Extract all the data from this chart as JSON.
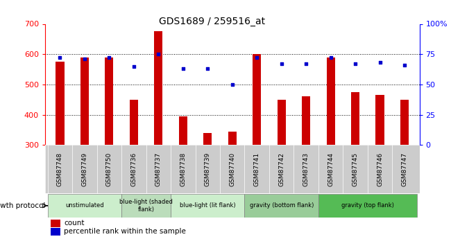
{
  "title": "GDS1689 / 259516_at",
  "samples": [
    "GSM87748",
    "GSM87749",
    "GSM87750",
    "GSM87736",
    "GSM87737",
    "GSM87738",
    "GSM87739",
    "GSM87740",
    "GSM87741",
    "GSM87742",
    "GSM87743",
    "GSM87744",
    "GSM87745",
    "GSM87746",
    "GSM87747"
  ],
  "counts": [
    575,
    590,
    590,
    450,
    675,
    395,
    340,
    345,
    600,
    450,
    460,
    590,
    475,
    465,
    450
  ],
  "percentiles": [
    72,
    71,
    72,
    65,
    75,
    63,
    63,
    50,
    72,
    67,
    67,
    72,
    67,
    68,
    66
  ],
  "bar_color": "#cc0000",
  "dot_color": "#0000cc",
  "y_min": 300,
  "y_max": 700,
  "y_ticks": [
    300,
    400,
    500,
    600,
    700
  ],
  "y2_tick_labels": [
    "0",
    "25",
    "50",
    "75",
    "100%"
  ],
  "y2_ticks": [
    0,
    25,
    50,
    75,
    100
  ],
  "groups": [
    {
      "label": "unstimulated",
      "start": 0,
      "end": 3,
      "color": "#cceecc"
    },
    {
      "label": "blue-light (shaded\nflank)",
      "start": 3,
      "end": 5,
      "color": "#bbddbb"
    },
    {
      "label": "blue-light (lit flank)",
      "start": 5,
      "end": 8,
      "color": "#cceecc"
    },
    {
      "label": "gravity (bottom flank)",
      "start": 8,
      "end": 11,
      "color": "#99cc99"
    },
    {
      "label": "gravity (top flank)",
      "start": 11,
      "end": 15,
      "color": "#55bb55"
    }
  ],
  "xlabel_growth": "growth protocol",
  "legend_count": "count",
  "legend_pct": "percentile rank within the sample",
  "sample_bg_color": "#cccccc",
  "bar_width": 0.35
}
